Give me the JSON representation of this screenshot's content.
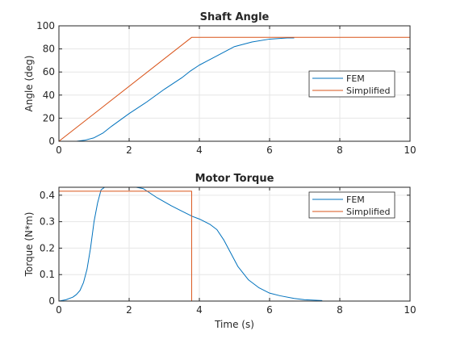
{
  "chart_data": [
    {
      "type": "line",
      "title": "Shaft Angle",
      "xlabel": "",
      "ylabel": "Angle (deg)",
      "xlim": [
        0,
        10
      ],
      "ylim": [
        0,
        100
      ],
      "xticks": [
        "0",
        "2",
        "4",
        "6",
        "8",
        "10"
      ],
      "yticks": [
        "0",
        "20",
        "40",
        "60",
        "80",
        "100"
      ],
      "grid": true,
      "legend": "right",
      "series": [
        {
          "name": "FEM",
          "color": "#0072BD",
          "x": [
            0,
            0.5,
            0.75,
            1.0,
            1.25,
            1.5,
            2.0,
            2.5,
            3.0,
            3.5,
            3.75,
            4.0,
            4.5,
            5.0,
            5.5,
            6.0,
            6.5,
            6.7
          ],
          "y": [
            0,
            0,
            1,
            3,
            7,
            13,
            24,
            34,
            45,
            55,
            61,
            66,
            74,
            82,
            86,
            88.5,
            89.5,
            89.5
          ]
        },
        {
          "name": "Simplified",
          "color": "#D95319",
          "x": [
            0,
            3.78,
            10
          ],
          "y": [
            0,
            90,
            90
          ]
        }
      ]
    },
    {
      "type": "line",
      "title": "Motor Torque",
      "xlabel": "Time (s)",
      "ylabel": "Torque (N*m)",
      "xlim": [
        0,
        10
      ],
      "ylim": [
        0,
        0.43
      ],
      "xticks": [
        "0",
        "2",
        "4",
        "6",
        "8",
        "10"
      ],
      "yticks": [
        "0",
        "0.1",
        "0.2",
        "0.3",
        "0.4"
      ],
      "grid": true,
      "legend": "top-right",
      "series": [
        {
          "name": "FEM",
          "color": "#0072BD",
          "x": [
            0,
            0.2,
            0.4,
            0.5,
            0.6,
            0.7,
            0.8,
            0.9,
            1.0,
            1.1,
            1.2,
            1.4,
            1.6,
            2.0,
            2.4,
            2.8,
            3.2,
            3.5,
            3.8,
            4.0,
            4.3,
            4.5,
            4.7,
            4.9,
            5.1,
            5.4,
            5.7,
            6.0,
            6.3,
            6.7,
            7.0,
            7.5
          ],
          "y": [
            0,
            0.005,
            0.015,
            0.025,
            0.04,
            0.07,
            0.12,
            0.2,
            0.3,
            0.37,
            0.42,
            0.44,
            0.44,
            0.435,
            0.425,
            0.39,
            0.36,
            0.34,
            0.32,
            0.31,
            0.29,
            0.27,
            0.23,
            0.18,
            0.13,
            0.08,
            0.05,
            0.03,
            0.02,
            0.01,
            0.005,
            0.002
          ]
        },
        {
          "name": "Simplified",
          "color": "#D95319",
          "x": [
            0,
            0,
            3.78,
            3.78,
            10
          ],
          "y": [
            0,
            0.415,
            0.415,
            0,
            0
          ]
        }
      ]
    }
  ]
}
